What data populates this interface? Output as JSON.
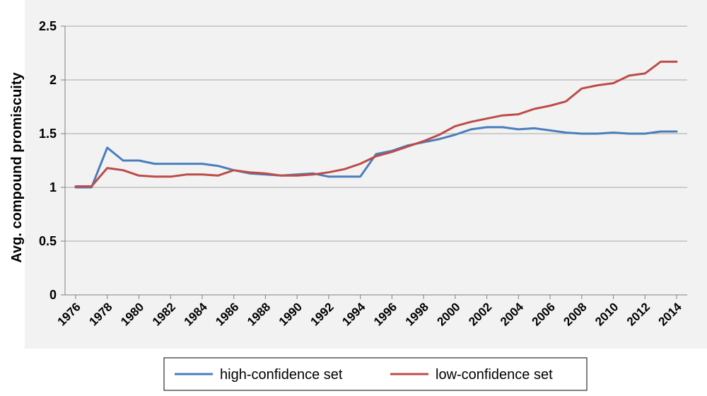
{
  "chart_data": {
    "type": "line",
    "ylabel": "Avg. compound promiscuity",
    "xlabel": "",
    "ylim": [
      0,
      2.5
    ],
    "yticks": [
      "0",
      "0.5",
      "1",
      "1.5",
      "2",
      "2.5"
    ],
    "xticks": [
      "1976",
      "1978",
      "1980",
      "1982",
      "1984",
      "1986",
      "1988",
      "1990",
      "1992",
      "1994",
      "1996",
      "1998",
      "2000",
      "2002",
      "2004",
      "2006",
      "2008",
      "2010",
      "2012",
      "2014"
    ],
    "x": [
      1976,
      1977,
      1978,
      1979,
      1980,
      1981,
      1982,
      1983,
      1984,
      1985,
      1986,
      1987,
      1988,
      1989,
      1990,
      1991,
      1992,
      1993,
      1994,
      1995,
      1996,
      1997,
      1998,
      1999,
      2000,
      2001,
      2002,
      2003,
      2004,
      2005,
      2006,
      2007,
      2008,
      2009,
      2010,
      2011,
      2012,
      2013,
      2014
    ],
    "grid": true,
    "legend_position": "bottom",
    "series": [
      {
        "name": "high-confidence set",
        "color": "#4a7ebb",
        "values": [
          1.0,
          1.0,
          1.37,
          1.25,
          1.25,
          1.22,
          1.22,
          1.22,
          1.22,
          1.2,
          1.16,
          1.13,
          1.12,
          1.11,
          1.12,
          1.13,
          1.1,
          1.1,
          1.1,
          1.31,
          1.34,
          1.39,
          1.42,
          1.45,
          1.49,
          1.54,
          1.56,
          1.56,
          1.54,
          1.55,
          1.53,
          1.51,
          1.5,
          1.5,
          1.51,
          1.5,
          1.5,
          1.52,
          1.52
        ]
      },
      {
        "name": "low-confidence set",
        "color": "#be4b48",
        "values": [
          1.01,
          1.01,
          1.18,
          1.16,
          1.11,
          1.1,
          1.1,
          1.12,
          1.12,
          1.11,
          1.16,
          1.14,
          1.13,
          1.11,
          1.11,
          1.12,
          1.14,
          1.17,
          1.22,
          1.29,
          1.33,
          1.38,
          1.43,
          1.49,
          1.57,
          1.61,
          1.64,
          1.67,
          1.68,
          1.73,
          1.76,
          1.8,
          1.92,
          1.95,
          1.97,
          2.04,
          2.06,
          2.17,
          2.17
        ]
      }
    ]
  }
}
